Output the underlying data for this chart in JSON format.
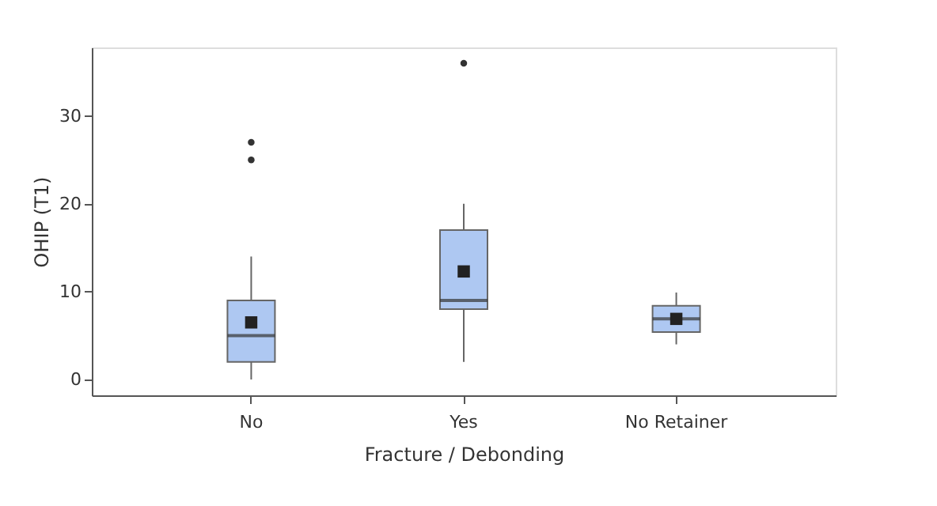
{
  "chart_data": {
    "type": "box",
    "xlabel": "Fracture / Debonding",
    "ylabel": "OHIP (T1)",
    "categories": [
      "No",
      "Yes",
      "No Retainer"
    ],
    "boxes": [
      {
        "low": 0,
        "q1": 2,
        "median": 5,
        "q3": 9,
        "high": 14,
        "mean": 6.5,
        "outliers": [
          25,
          27
        ]
      },
      {
        "low": 2,
        "q1": 8,
        "median": 9,
        "q3": 17,
        "high": 20,
        "mean": 12.3,
        "outliers": [
          36
        ]
      },
      {
        "low": 4,
        "q1": 5.4,
        "median": 6.9,
        "q3": 8.4,
        "high": 9.9,
        "mean": 6.9
      }
    ],
    "color": "#aec8f2",
    "ylim": [
      -1.8,
      37.8
    ],
    "yticks": [
      0,
      10,
      20,
      30
    ],
    "grid": false,
    "marker": "square"
  }
}
